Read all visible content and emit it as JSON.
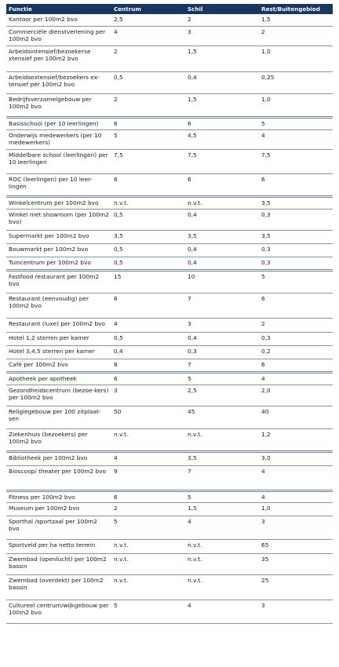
{
  "table": {
    "headers": [
      "Functie",
      "Centrum",
      "Schil",
      "Rest/Buitengebied"
    ],
    "rows": [
      {
        "functie": "Kantoor per 100m2 bvo",
        "centrum": "2,5",
        "schil": "2",
        "rest": "1,5",
        "h": 15,
        "sep": false
      },
      {
        "functie": "Commerciële dienstverlening per 100m2 bvo",
        "centrum": "4",
        "schil": "3",
        "rest": "2",
        "h": 25,
        "sep": false
      },
      {
        "functie": "Arbeidsintensief/bezoekerse xtensief per 100m2 bvo",
        "centrum": "2",
        "schil": "1,5",
        "rest": "1,0",
        "h": 33,
        "sep": false
      },
      {
        "functie": "Arbeidsextensief/bezoekers ex-tensief per 100m2 bvo",
        "centrum": "0,5",
        "schil": "0,4",
        "rest": "0,25",
        "h": 28,
        "sep": false
      },
      {
        "functie": "Bedrijfsverzamelgebouw per 100m2 bvo",
        "centrum": "2",
        "schil": "1,5",
        "rest": "1,0",
        "h": 30,
        "sep": true
      },
      {
        "functie": "Basisschool (per 10 leerlingen)",
        "centrum": "6",
        "schil": "6",
        "rest": "5",
        "h": 16,
        "sep": false
      },
      {
        "functie": "Onderwijs medewerkers (per 10 medewerkers)",
        "centrum": "5",
        "schil": "4,5",
        "rest": "4",
        "h": 25,
        "sep": false
      },
      {
        "functie": "Middelbare school (leerlingen) per 10 leerlingen",
        "centrum": "7,5",
        "schil": "7,5",
        "rest": "7,5",
        "h": 31,
        "sep": false
      },
      {
        "functie": "ROC (leerlingen) per 10 leer-lingen",
        "centrum": "6",
        "schil": "6",
        "rest": "6",
        "h": 29,
        "sep": true
      },
      {
        "functie": "Winkelcentrum per 100m2 bvo",
        "centrum": "n.v.t.",
        "schil": "n.v.t.",
        "rest": "3,5",
        "h": 16,
        "sep": false
      },
      {
        "functie": "Winkel met showroom (per 100m2 bvo)",
        "centrum": "0,5",
        "schil": "0,4",
        "rest": "0,3",
        "h": 27,
        "sep": false
      },
      {
        "functie": "Supermarkt per 100m2 bvo",
        "centrum": "3,5",
        "schil": "3,5",
        "rest": "3,5",
        "h": 17,
        "sep": false
      },
      {
        "functie": "Bouwmarkt per 100m2 bvo",
        "centrum": "0,5",
        "schil": "0,4",
        "rest": "0,3",
        "h": 17,
        "sep": false
      },
      {
        "functie": "Tuincentrum per 100m2 bvo",
        "centrum": "0,5",
        "schil": "0,4",
        "rest": "0,3",
        "h": 17,
        "sep": true
      },
      {
        "functie": "Fastfood restaurant per 100m2 bvo",
        "centrum": "15",
        "schil": "10",
        "rest": "5",
        "h": 29,
        "sep": false
      },
      {
        "functie": "Restaurant (eenvoudig) per 100m2 bvo",
        "centrum": "8",
        "schil": "7",
        "rest": "6",
        "h": 32,
        "sep": false
      },
      {
        "functie": "Restaurant (luxe) per 100m2 bvo",
        "centrum": "4",
        "schil": "3",
        "rest": "2",
        "h": 18,
        "sep": false
      },
      {
        "functie": "Hotel 1,2 sterren per kamer",
        "centrum": "0,5",
        "schil": "0,4",
        "rest": "0,3",
        "h": 17,
        "sep": false
      },
      {
        "functie": "Hotel 3,4,5 sterren per kamer",
        "centrum": "0,4",
        "schil": "0,3",
        "rest": "0,2",
        "h": 17,
        "sep": false
      },
      {
        "functie": "Café per 100m2 bvo",
        "centrum": "8",
        "schil": "7",
        "rest": "6",
        "h": 17,
        "sep": true
      },
      {
        "functie": "Apotheek per apotheek",
        "centrum": "6",
        "schil": "5",
        "rest": "4",
        "h": 16,
        "sep": false
      },
      {
        "functie": "Gezondheidscentrum (bezoe-kers) per 100m2 bvo",
        "centrum": "3",
        "schil": "2,5",
        "rest": "2,0",
        "h": 27,
        "sep": false
      },
      {
        "functie": "Religiegebouw per 100 zitplaat-sen",
        "centrum": "50",
        "schil": "45",
        "rest": "40",
        "h": 29,
        "sep": false
      },
      {
        "functie": "Ziekenhuis (bezoekers) per 100m2 bvo",
        "centrum": "n.v.t.",
        "schil": "n.v.t.",
        "rest": "1,2",
        "h": 29,
        "sep": true
      },
      {
        "functie": "Bibliotheek per 100m2 bvo",
        "centrum": "4",
        "schil": "3,5",
        "rest": "3,0",
        "h": 18,
        "sep": false
      },
      {
        "functie": "Bioscoop/ theater per 100m2 bvo",
        "centrum": "9",
        "schil": "7",
        "rest": "4",
        "h": 32,
        "sep": true
      },
      {
        "functie": "Fitness per 100m2 bvo",
        "centrum": "6",
        "schil": "5",
        "rest": "4",
        "h": 15,
        "sep": false
      },
      {
        "functie": "Museum per 100m2 bvo",
        "centrum": "2",
        "schil": "1,5",
        "rest": "1,0",
        "h": 17,
        "sep": false
      },
      {
        "functie": "Sporthal /sportzaal per 100m2 bvo",
        "centrum": "5",
        "schil": "4",
        "rest": "3",
        "h": 30,
        "sep": false
      },
      {
        "functie": "Sportveld per ha netto terrein",
        "centrum": "n.v.t.",
        "schil": "n.v.t.",
        "rest": "65",
        "h": 18,
        "sep": false
      },
      {
        "functie": "Zwembad (openlucht) per 100m2 bassin",
        "centrum": "n.v.t.",
        "schil": "n.v.t.",
        "rest": "35",
        "h": 27,
        "sep": false
      },
      {
        "functie": "Zwembad (overdekt) per 100m2 bassin",
        "centrum": "n.v.t.",
        "schil": "n.v.t.",
        "rest": "25",
        "h": 32,
        "sep": false
      },
      {
        "functie": "Cultureel centrum/wijkgebouw per 100m2 bvo",
        "centrum": "5",
        "schil": "4",
        "rest": "3",
        "h": 30,
        "sep": false
      }
    ]
  }
}
